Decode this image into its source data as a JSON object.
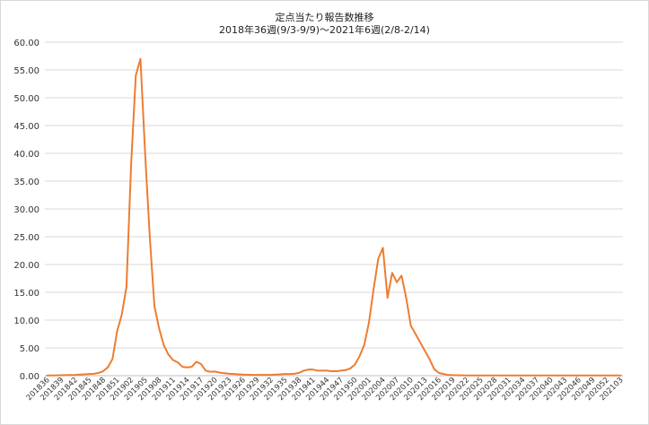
{
  "chart_data": {
    "type": "line",
    "title": "定点当たり報告数推移",
    "subtitle": "2018年36週(9/3-9/9)～2021年6週(2/8-2/14)",
    "xlabel": "",
    "ylabel": "",
    "ylim": [
      0,
      60
    ],
    "yticks": [
      "0.00",
      "5.00",
      "10.00",
      "15.00",
      "20.00",
      "25.00",
      "30.00",
      "35.00",
      "40.00",
      "45.00",
      "50.00",
      "55.00",
      "60.00"
    ],
    "grid": true,
    "line_color": "#ED7D31",
    "x_start": {
      "year": 2018,
      "week": 36,
      "weeks_in_year": 52
    },
    "x_tick_every": 3,
    "values": [
      0.05,
      0.05,
      0.06,
      0.08,
      0.1,
      0.12,
      0.15,
      0.2,
      0.25,
      0.3,
      0.35,
      0.5,
      0.8,
      1.5,
      3.0,
      8.0,
      11.0,
      16.0,
      38.0,
      54.0,
      57.0,
      40.0,
      25.0,
      12.5,
      8.5,
      5.5,
      3.8,
      2.8,
      2.4,
      1.6,
      1.5,
      1.6,
      2.5,
      2.1,
      0.9,
      0.7,
      0.75,
      0.55,
      0.45,
      0.35,
      0.3,
      0.25,
      0.2,
      0.18,
      0.15,
      0.15,
      0.15,
      0.15,
      0.15,
      0.2,
      0.25,
      0.3,
      0.3,
      0.35,
      0.5,
      0.9,
      1.1,
      1.1,
      0.9,
      0.9,
      0.9,
      0.8,
      0.8,
      0.9,
      1.0,
      1.3,
      2.0,
      3.5,
      5.5,
      9.5,
      15.5,
      21.0,
      23.0,
      14.0,
      18.5,
      16.8,
      18.0,
      14.0,
      9.0,
      7.5,
      6.0,
      4.5,
      3.0,
      1.2,
      0.5,
      0.3,
      0.15,
      0.1,
      0.08,
      0.06,
      0.05,
      0.05,
      0.05,
      0.05,
      0.05,
      0.05,
      0.05,
      0.05,
      0.05,
      0.05,
      0.05,
      0.05,
      0.05,
      0.05,
      0.05,
      0.05,
      0.05,
      0.05,
      0.05,
      0.05,
      0.05,
      0.05,
      0.05,
      0.05,
      0.05,
      0.05,
      0.05,
      0.05,
      0.05,
      0.05,
      0.05,
      0.05,
      0.05,
      0.05
    ]
  }
}
